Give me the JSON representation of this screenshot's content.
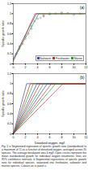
{
  "chart_data": [
    {
      "type": "scatter",
      "title": "(a)",
      "y_label": "Specific growth ratio",
      "xlim": [
        0,
        12
      ],
      "xticks": [
        0,
        2,
        4,
        6,
        8,
        10,
        12
      ],
      "ylim": [
        0,
        1.2
      ],
      "yticks": [
        0,
        0.2,
        0.4,
        0.6,
        0.8,
        1,
        1.2
      ],
      "legend": "bottom-right",
      "series": [
        {
          "name": "Saltwater",
          "color": "#2f4fb5",
          "marker": "circle",
          "x": [
            1,
            2,
            3,
            4,
            5,
            6,
            8,
            10
          ],
          "values": [
            0.35,
            0.55,
            0.7,
            0.9,
            0.95,
            1.0,
            1.02,
            0.98
          ]
        },
        {
          "name": "Freshwater",
          "color": "#d62728",
          "marker": "circle",
          "x": [
            0.5,
            1.5,
            2.5,
            3.5,
            5,
            7,
            9
          ],
          "values": [
            0.2,
            0.4,
            0.6,
            0.85,
            0.97,
            1.0,
            1.01
          ]
        },
        {
          "name": "Marine",
          "color": "#2ca02c",
          "marker": "circle",
          "x": [
            1,
            2,
            3,
            4.5,
            6,
            8,
            11
          ],
          "values": [
            0.3,
            0.5,
            0.75,
            0.92,
            0.99,
            1.0,
            1.0
          ]
        },
        {
          "type": "line",
          "color": "#2f4fb5",
          "x": [
            0,
            3.8,
            12
          ],
          "values": [
            0.1,
            1,
            1
          ]
        },
        {
          "type": "line",
          "color": "#d62728",
          "x": [
            0,
            3.6,
            12
          ],
          "values": [
            0.05,
            1,
            1
          ]
        },
        {
          "type": "line",
          "color": "#2ca02c",
          "x": [
            0,
            4.2,
            12
          ],
          "values": [
            0.08,
            1,
            1
          ]
        }
      ]
    },
    {
      "type": "line",
      "title": "(b)",
      "y_label": "Specific growth ratio",
      "x_label": "Dissolved oxygen, mg/l",
      "xlim": [
        0,
        12
      ],
      "xticks": [
        0,
        2,
        4,
        6,
        8,
        10,
        12
      ],
      "ylim": [
        0,
        1.2
      ],
      "yticks": [
        0,
        0.2,
        0.4,
        0.6,
        0.8,
        1,
        1.2
      ],
      "series": [
        {
          "color": "#2f4fb5",
          "x": [
            0,
            2.2,
            12
          ],
          "values": [
            0,
            1,
            1
          ]
        },
        {
          "color": "#d62728",
          "x": [
            0,
            2.8,
            12
          ],
          "values": [
            0,
            1,
            1
          ]
        },
        {
          "color": "#2ca02c",
          "x": [
            0,
            3.3,
            12
          ],
          "values": [
            0,
            1,
            1
          ]
        },
        {
          "color": "#2f4fb5",
          "x": [
            0,
            3.9,
            12
          ],
          "values": [
            0,
            1,
            1
          ]
        },
        {
          "color": "#d62728",
          "x": [
            0,
            4.4,
            12
          ],
          "values": [
            0,
            1,
            1
          ]
        },
        {
          "color": "#2ca02c",
          "x": [
            0,
            5.0,
            12
          ],
          "values": [
            0,
            1,
            1
          ]
        },
        {
          "color": "#2f4fb5",
          "x": [
            0,
            5.6,
            12
          ],
          "values": [
            0,
            1,
            1
          ]
        },
        {
          "color": "#d62728",
          "x": [
            0,
            6.3,
            12
          ],
          "values": [
            0,
            1,
            1
          ]
        },
        {
          "color": "#2ca02c",
          "x": [
            0,
            7.0,
            12
          ],
          "values": [
            0,
            1,
            1
          ]
        },
        {
          "color": "#d62728",
          "x": [
            0,
            8.2,
            12
          ],
          "values": [
            0,
            1,
            1
          ]
        }
      ]
    }
  ],
  "caption": "Fig. 2 a Segmented regression of specific growth ratio (standardized to a maximum of 1) as a function of dissolved oxygen, averaged across 35 species. The average breakpoint was 4 mg/l. Open circles represent the mean standardized growth for individual oxygen treatments; lines are 95% confidence intervals. b Segmented regressions of specific growth ratio for individual species, separated into freshwater, saltwater and marine species. Colours as in panel a"
}
